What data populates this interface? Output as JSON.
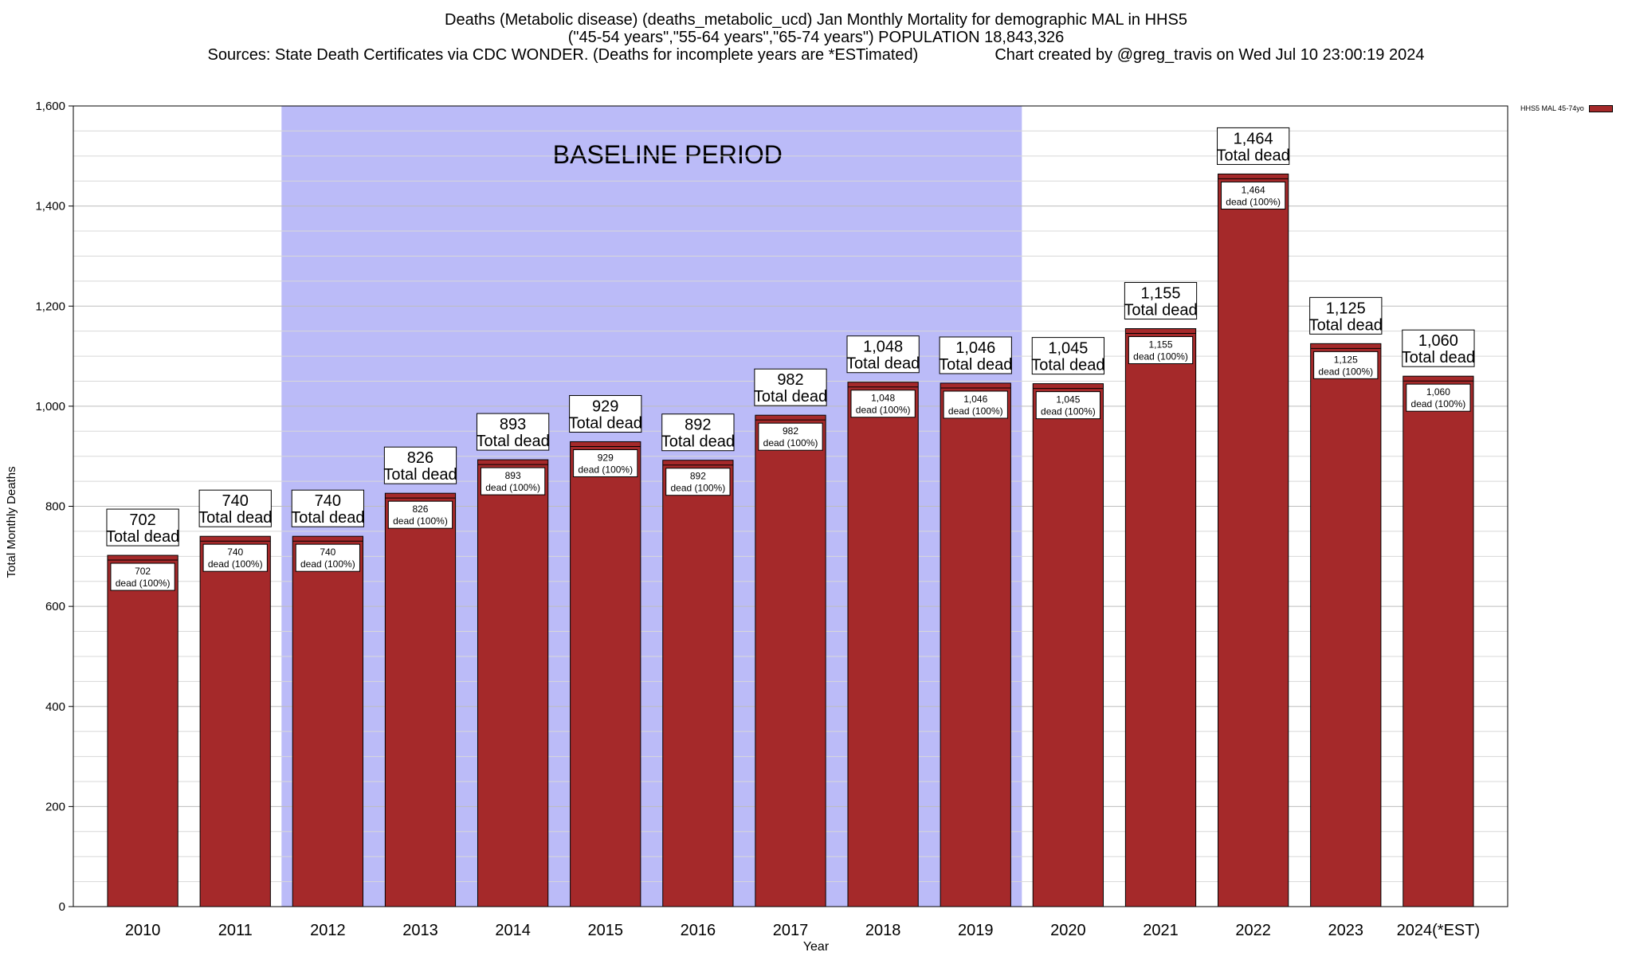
{
  "title": {
    "line1": "Deaths (Metabolic disease) (deaths_metabolic_ucd) Jan Monthly Mortality for demographic MAL in HHS5",
    "line2": "(\"45-54 years\",\"55-64 years\",\"65-74 years\") POPULATION 18,843,326",
    "sources": "Sources: State Death Certificates via CDC WONDER. (Deaths for incomplete years are *ESTimated)",
    "credit": "Chart created by @greg_travis on Wed Jul 10 23:00:19 2024"
  },
  "legend": {
    "label": "HHS5 MAL 45-74yo"
  },
  "chart_data": {
    "type": "bar",
    "xlabel": "Year",
    "ylabel": "Total Monthly Deaths",
    "ylim": [
      0,
      1600
    ],
    "yticks": [
      0,
      200,
      400,
      600,
      800,
      1000,
      1200,
      1400,
      1600
    ],
    "ytick_labels": [
      "0",
      "200",
      "400",
      "600",
      "800",
      "1,000",
      "1,200",
      "1,400",
      "1,600"
    ],
    "grid": true,
    "legend_position": "top-right",
    "categories": [
      "2010",
      "2011",
      "2012",
      "2013",
      "2014",
      "2015",
      "2016",
      "2017",
      "2018",
      "2019",
      "2020",
      "2021",
      "2022",
      "2023",
      "2024(*EST)"
    ],
    "series": [
      {
        "name": "HHS5 MAL 45-74yo",
        "values": [
          702,
          740,
          740,
          826,
          893,
          929,
          892,
          982,
          1048,
          1046,
          1045,
          1155,
          1464,
          1125,
          1060
        ]
      }
    ],
    "value_labels": [
      "702",
      "740",
      "740",
      "826",
      "893",
      "929",
      "892",
      "982",
      "1,048",
      "1,046",
      "1,045",
      "1,155",
      "1,464",
      "1,125",
      "1,060"
    ],
    "top_label_suffix": "Total dead",
    "inner_label_suffix": "dead (100%)",
    "baseline": {
      "label": "BASELINE PERIOD",
      "start": "2012",
      "end": "2019"
    },
    "colors": {
      "bar": "#a5292a",
      "baseline": "#bbbbf8",
      "bar_cap": "#ffffff"
    }
  }
}
